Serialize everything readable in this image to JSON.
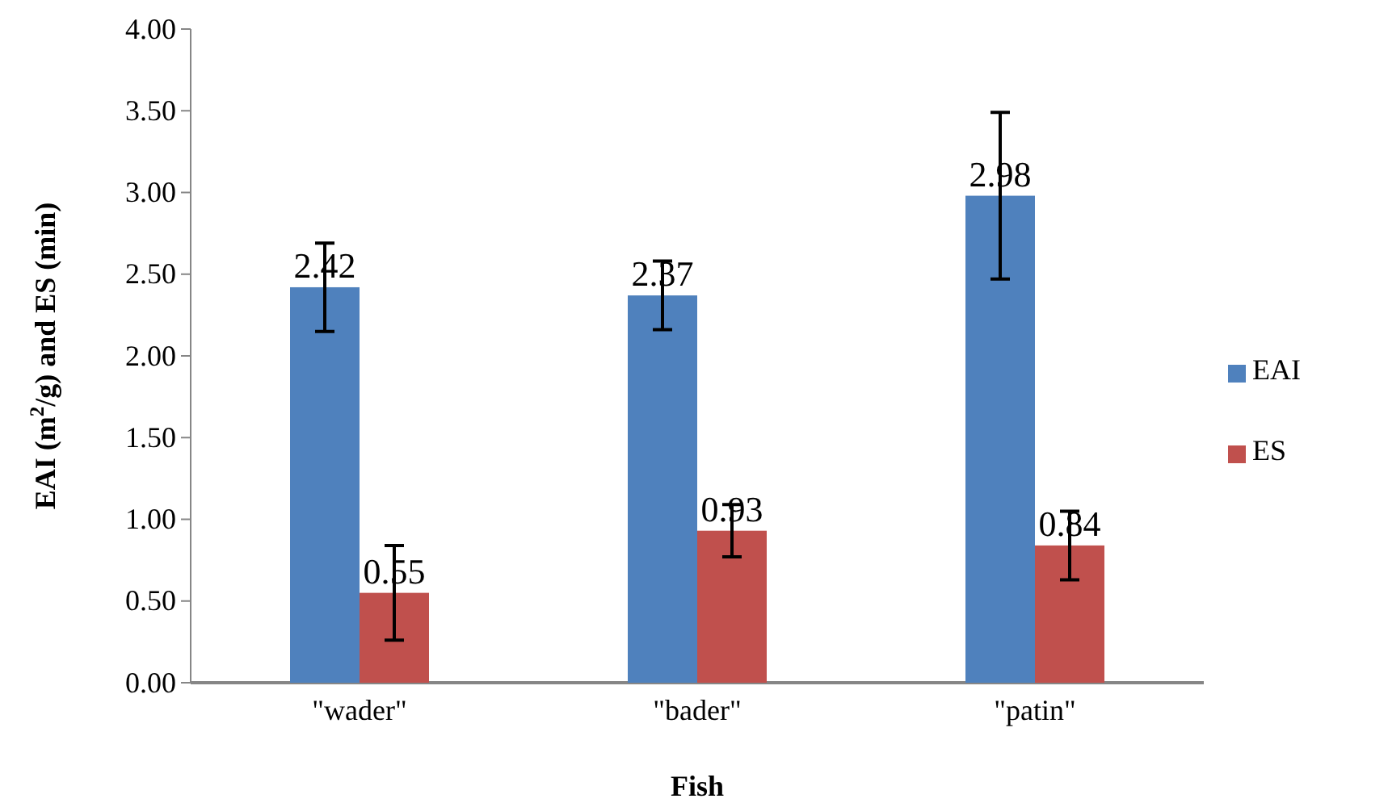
{
  "chart_data": {
    "type": "bar",
    "xlabel": "Fish",
    "ylabel": "EAI (m$^{2}$/g) and ES (min)",
    "categories": [
      "\"wader\"",
      "\"bader\"",
      "\"patin\""
    ],
    "series": [
      {
        "name": "EAI",
        "color": "#4f81bd",
        "values": [
          2.42,
          2.37,
          2.98
        ],
        "errors": [
          0.27,
          0.21,
          0.51
        ]
      },
      {
        "name": "ES",
        "color": "#c0504d",
        "values": [
          0.55,
          0.93,
          0.84
        ],
        "errors": [
          0.29,
          0.16,
          0.21
        ]
      }
    ],
    "ylim": [
      0,
      4
    ],
    "yticks": [
      {
        "value": 0,
        "label": "0.00"
      },
      {
        "value": 0.5,
        "label": "0.50"
      },
      {
        "value": 1,
        "label": "1.00"
      },
      {
        "value": 1.5,
        "label": "1.50"
      },
      {
        "value": 2,
        "label": "2.00"
      },
      {
        "value": 2.5,
        "label": "2.50"
      },
      {
        "value": 3,
        "label": "3.00"
      },
      {
        "value": 3.5,
        "label": "3.50"
      },
      {
        "value": 4,
        "label": "4.00"
      }
    ],
    "data_labels": true,
    "legend": "right",
    "grid": false
  }
}
